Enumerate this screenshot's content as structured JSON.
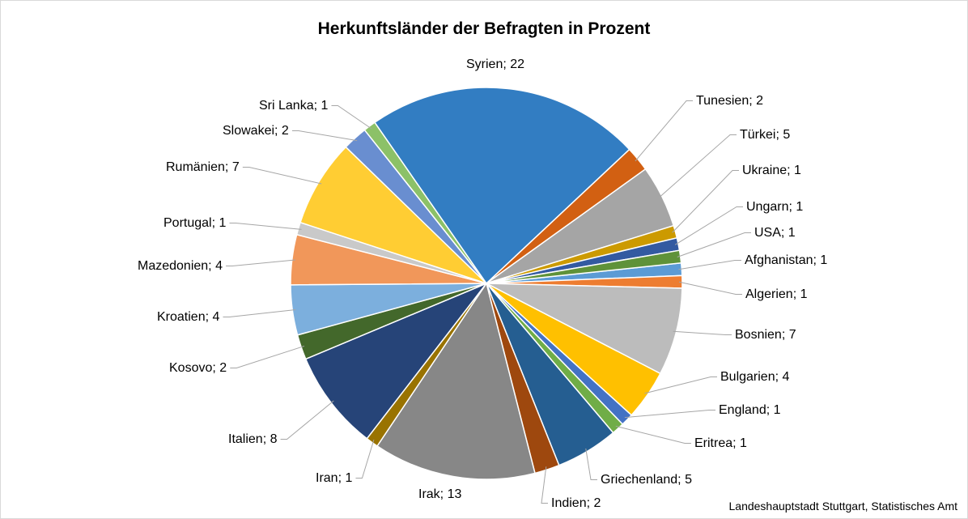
{
  "chart_data": {
    "type": "pie",
    "title": "Herkunftsländer der Befragten in Prozent",
    "values": [
      1,
      1,
      7,
      4,
      1,
      1,
      5,
      2,
      13,
      1,
      8,
      2,
      4,
      4,
      1,
      7,
      2,
      1,
      22,
      2,
      5,
      1,
      1,
      1
    ],
    "value_labels": [
      "Afghanistan; 1",
      "Algerien; 1",
      "Bosnien; 7",
      "Bulgarien; 4",
      "England; 1",
      "Eritrea; 1",
      "Griechenland; 5",
      "Indien; 2",
      "Irak; 13",
      "Iran; 1",
      "Italien; 8",
      "Kosovo; 2",
      "Kroatien; 4",
      "Mazedonien; 4",
      "Portugal; 1",
      "Rumänien; 7",
      "Slowakei; 2",
      "Sri Lanka; 1",
      "Syrien; 22",
      "Tunesien; 2",
      "Türkei; 5",
      "Ukraine; 1",
      "Ungarn; 1",
      "USA; 1"
    ],
    "colors": [
      "#5b9bd5",
      "#ed7d31",
      "#bcbcbc",
      "#ffc000",
      "#4472c4",
      "#70ad47",
      "#255e91",
      "#9e480e",
      "#878787",
      "#997300",
      "#264478",
      "#43682b",
      "#7cafdd",
      "#f1975a",
      "#c9c9c9",
      "#ffcd33",
      "#698ed0",
      "#8cc168",
      "#327dc2",
      "#d26012",
      "#a5a5a5",
      "#cc9a00",
      "#335aa1",
      "#5f9239"
    ],
    "source": "Landeshauptstadt Stuttgart, Statistisches Amt"
  }
}
